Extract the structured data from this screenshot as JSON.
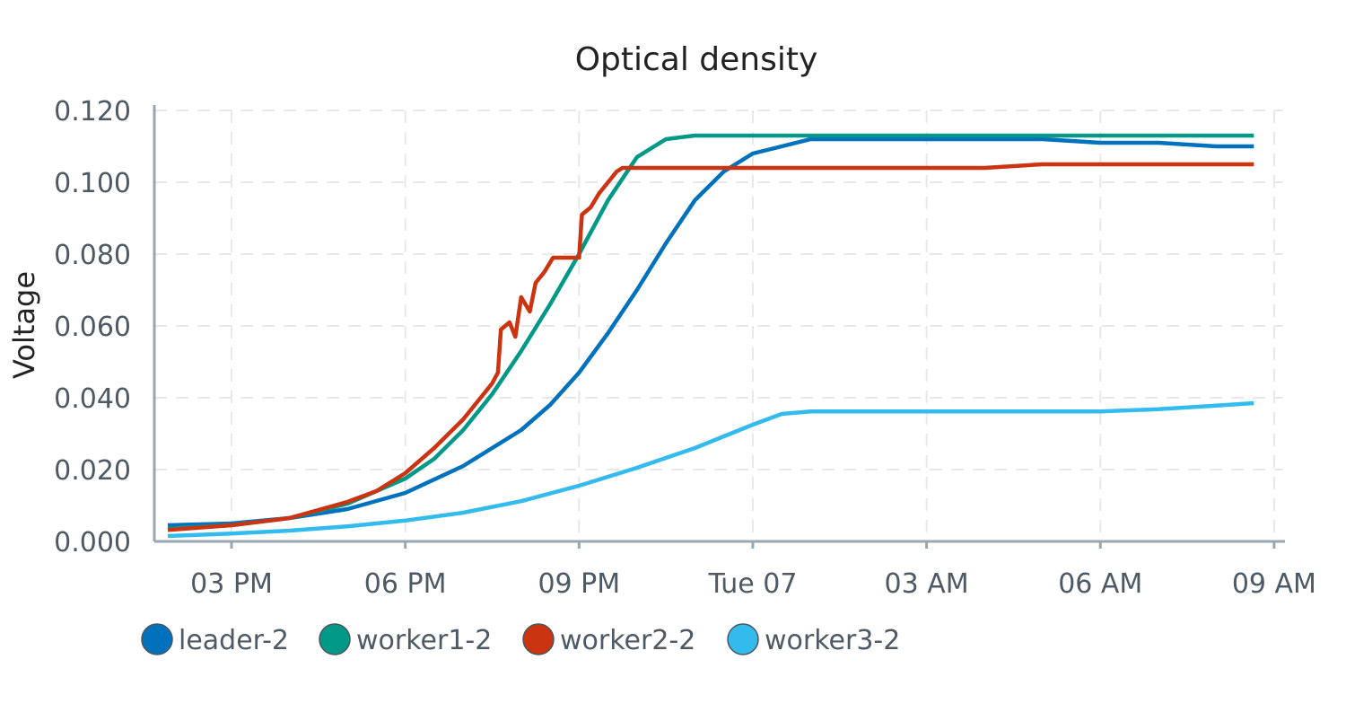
{
  "chart_data": {
    "type": "line",
    "title": "Optical density",
    "ylabel": "Voltage",
    "xlabel": "",
    "ylim": [
      0,
      0.12
    ],
    "xlim_hours": [
      13.45,
      32.8
    ],
    "y_ticks": [
      0,
      0.02,
      0.04,
      0.06,
      0.08,
      0.1,
      0.12
    ],
    "y_tick_labels": [
      "0.000",
      "0.020",
      "0.040",
      "0.060",
      "0.080",
      "0.100",
      "0.120"
    ],
    "x_ticks": [
      {
        "hour": 15,
        "label": "03 PM"
      },
      {
        "hour": 18,
        "label": "06 PM"
      },
      {
        "hour": 21,
        "label": "09 PM"
      },
      {
        "hour": 24,
        "label": "Tue 07"
      },
      {
        "hour": 27,
        "label": "03 AM"
      },
      {
        "hour": 30,
        "label": "06 AM"
      },
      {
        "hour": 33,
        "label": "09 AM"
      }
    ],
    "grid": true,
    "legend_position": "bottom-left",
    "series": [
      {
        "name": "leader-2",
        "color": "#0072bd",
        "points": [
          [
            13.9,
            0.0045
          ],
          [
            15,
            0.005
          ],
          [
            16,
            0.0065
          ],
          [
            17,
            0.009
          ],
          [
            18,
            0.0135
          ],
          [
            19,
            0.021
          ],
          [
            20,
            0.031
          ],
          [
            20.5,
            0.038
          ],
          [
            21,
            0.047
          ],
          [
            21.5,
            0.058
          ],
          [
            22,
            0.07
          ],
          [
            22.5,
            0.083
          ],
          [
            23,
            0.095
          ],
          [
            23.5,
            0.103
          ],
          [
            24,
            0.108
          ],
          [
            24.5,
            0.11
          ],
          [
            25,
            0.112
          ],
          [
            26,
            0.112
          ],
          [
            27,
            0.112
          ],
          [
            28,
            0.112
          ],
          [
            29,
            0.112
          ],
          [
            30,
            0.111
          ],
          [
            31,
            0.111
          ],
          [
            32,
            0.11
          ],
          [
            32.65,
            0.11
          ]
        ]
      },
      {
        "name": "worker1-2",
        "color": "#009988",
        "points": [
          [
            13.9,
            0.0035
          ],
          [
            15,
            0.0045
          ],
          [
            16,
            0.0065
          ],
          [
            17,
            0.0105
          ],
          [
            18,
            0.0175
          ],
          [
            18.5,
            0.023
          ],
          [
            19,
            0.031
          ],
          [
            19.5,
            0.041
          ],
          [
            20,
            0.053
          ],
          [
            20.5,
            0.066
          ],
          [
            21,
            0.08
          ],
          [
            21.5,
            0.095
          ],
          [
            22,
            0.107
          ],
          [
            22.5,
            0.112
          ],
          [
            23,
            0.113
          ],
          [
            24,
            0.113
          ],
          [
            25,
            0.113
          ],
          [
            26,
            0.113
          ],
          [
            27,
            0.113
          ],
          [
            28,
            0.113
          ],
          [
            29,
            0.113
          ],
          [
            30,
            0.113
          ],
          [
            31,
            0.113
          ],
          [
            32,
            0.113
          ],
          [
            32.65,
            0.113
          ]
        ]
      },
      {
        "name": "worker2-2",
        "color": "#cc3311",
        "points": [
          [
            13.9,
            0.0032
          ],
          [
            15,
            0.0045
          ],
          [
            16,
            0.0065
          ],
          [
            17,
            0.011
          ],
          [
            17.5,
            0.014
          ],
          [
            18,
            0.019
          ],
          [
            18.5,
            0.026
          ],
          [
            19,
            0.034
          ],
          [
            19.5,
            0.044
          ],
          [
            19.6,
            0.047
          ],
          [
            19.65,
            0.059
          ],
          [
            19.8,
            0.061
          ],
          [
            19.9,
            0.057
          ],
          [
            20,
            0.068
          ],
          [
            20.15,
            0.064
          ],
          [
            20.25,
            0.072
          ],
          [
            20.4,
            0.075
          ],
          [
            20.55,
            0.079
          ],
          [
            21.0,
            0.079
          ],
          [
            21.05,
            0.091
          ],
          [
            21.2,
            0.093
          ],
          [
            21.35,
            0.097
          ],
          [
            21.5,
            0.1
          ],
          [
            21.65,
            0.103
          ],
          [
            21.75,
            0.104
          ],
          [
            22,
            0.104
          ],
          [
            23,
            0.104
          ],
          [
            24,
            0.104
          ],
          [
            25,
            0.104
          ],
          [
            26,
            0.104
          ],
          [
            27,
            0.104
          ],
          [
            28,
            0.104
          ],
          [
            29,
            0.105
          ],
          [
            30,
            0.105
          ],
          [
            31,
            0.105
          ],
          [
            32,
            0.105
          ],
          [
            32.65,
            0.105
          ]
        ]
      },
      {
        "name": "worker3-2",
        "color": "#33bbee",
        "points": [
          [
            13.9,
            0.0015
          ],
          [
            15,
            0.0022
          ],
          [
            16,
            0.003
          ],
          [
            17,
            0.0042
          ],
          [
            18,
            0.0058
          ],
          [
            19,
            0.008
          ],
          [
            20,
            0.0112
          ],
          [
            21,
            0.0155
          ],
          [
            22,
            0.0205
          ],
          [
            23,
            0.026
          ],
          [
            24,
            0.0325
          ],
          [
            24.5,
            0.0355
          ],
          [
            25,
            0.0362
          ],
          [
            26,
            0.0362
          ],
          [
            27,
            0.0362
          ],
          [
            28,
            0.0362
          ],
          [
            29,
            0.0362
          ],
          [
            30,
            0.0362
          ],
          [
            31,
            0.0368
          ],
          [
            32,
            0.0378
          ],
          [
            32.65,
            0.0385
          ]
        ]
      }
    ]
  }
}
